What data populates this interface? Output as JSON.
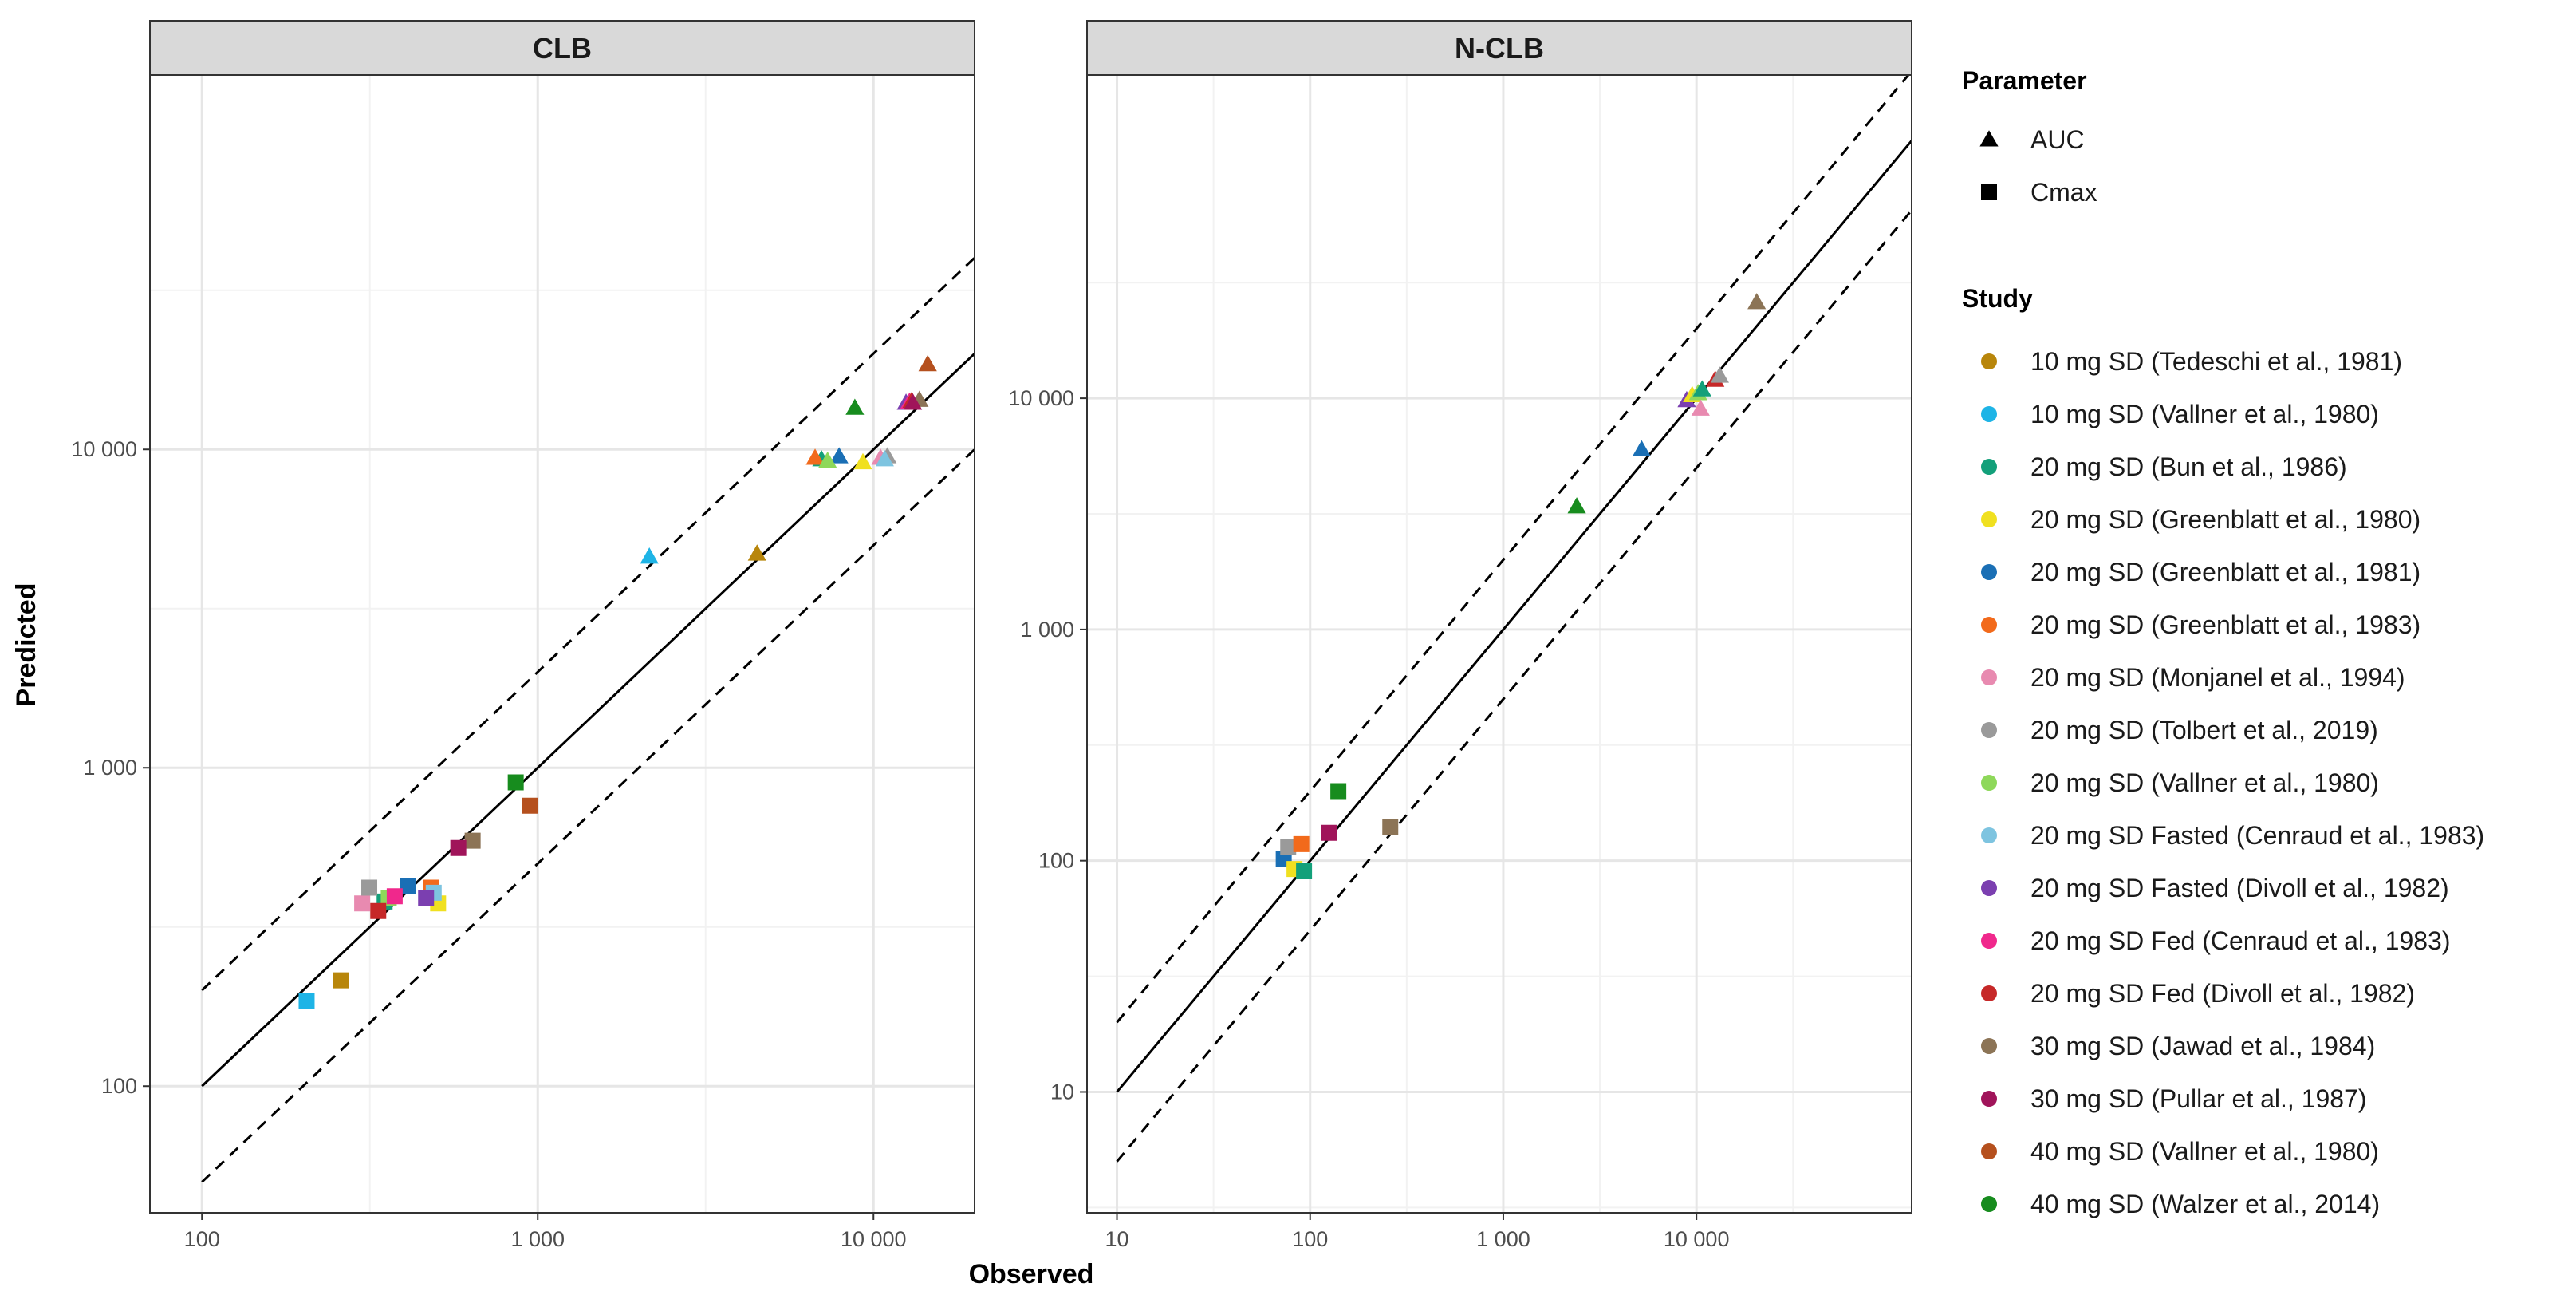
{
  "chart_data": [
    {
      "type": "scatter",
      "panel": "CLB",
      "scale": "log10",
      "xlabel": "Observed",
      "ylabel": "Predicted",
      "xlim": [
        70,
        20000
      ],
      "ylim": [
        40,
        150000
      ],
      "x_ticks": [
        {
          "value": 100,
          "label": "100"
        },
        {
          "value": 1000,
          "label": "1 000"
        },
        {
          "value": 10000,
          "label": "10 000"
        }
      ],
      "y_ticks": [
        {
          "value": 100,
          "label": "100"
        },
        {
          "value": 1000,
          "label": "1 000"
        },
        {
          "value": 10000,
          "label": "10 000"
        }
      ],
      "reference_lines": [
        {
          "style": "solid",
          "factor": 1,
          "x_range": [
            100,
            2000000
          ]
        },
        {
          "style": "dashed",
          "factor": 2,
          "x_range": [
            100,
            2000000
          ]
        },
        {
          "style": "dashed",
          "factor": 0.5,
          "x_range": [
            100,
            2000000
          ]
        }
      ],
      "points": [
        {
          "study": 0,
          "param": "Cmax",
          "x": 260,
          "y": 215
        },
        {
          "study": 0,
          "param": "AUC",
          "x": 4500,
          "y": 4700
        },
        {
          "study": 1,
          "param": "Cmax",
          "x": 205,
          "y": 185
        },
        {
          "study": 1,
          "param": "AUC",
          "x": 2150,
          "y": 4600
        },
        {
          "study": 2,
          "param": "Cmax",
          "x": 350,
          "y": 380
        },
        {
          "study": 2,
          "param": "AUC",
          "x": 7000,
          "y": 9300
        },
        {
          "study": 3,
          "param": "Cmax",
          "x": 505,
          "y": 375
        },
        {
          "study": 3,
          "param": "AUC",
          "x": 9300,
          "y": 9100
        },
        {
          "study": 4,
          "param": "Cmax",
          "x": 410,
          "y": 425
        },
        {
          "study": 4,
          "param": "AUC",
          "x": 7900,
          "y": 9500
        },
        {
          "study": 5,
          "param": "Cmax",
          "x": 480,
          "y": 420
        },
        {
          "study": 5,
          "param": "AUC",
          "x": 6700,
          "y": 9400
        },
        {
          "study": 6,
          "param": "Cmax",
          "x": 300,
          "y": 375
        },
        {
          "study": 6,
          "param": "AUC",
          "x": 10500,
          "y": 9400
        },
        {
          "study": 7,
          "param": "Cmax",
          "x": 315,
          "y": 420
        },
        {
          "study": 7,
          "param": "AUC",
          "x": 11000,
          "y": 9500
        },
        {
          "study": 8,
          "param": "Cmax",
          "x": 360,
          "y": 390
        },
        {
          "study": 8,
          "param": "AUC",
          "x": 7300,
          "y": 9200
        },
        {
          "study": 9,
          "param": "Cmax",
          "x": 490,
          "y": 405
        },
        {
          "study": 9,
          "param": "AUC",
          "x": 10800,
          "y": 9300
        },
        {
          "study": 10,
          "param": "Cmax",
          "x": 465,
          "y": 390
        },
        {
          "study": 10,
          "param": "AUC",
          "x": 12500,
          "y": 14000
        },
        {
          "study": 11,
          "param": "Cmax",
          "x": 375,
          "y": 395
        },
        {
          "study": 11,
          "param": "AUC",
          "x": 12800,
          "y": 14100
        },
        {
          "study": 12,
          "param": "Cmax",
          "x": 335,
          "y": 355
        },
        {
          "study": 12,
          "param": "AUC",
          "x": 13000,
          "y": 14200
        },
        {
          "study": 13,
          "param": "Cmax",
          "x": 640,
          "y": 590
        },
        {
          "study": 13,
          "param": "AUC",
          "x": 13700,
          "y": 14300
        },
        {
          "study": 14,
          "param": "Cmax",
          "x": 580,
          "y": 560
        },
        {
          "study": 14,
          "param": "AUC",
          "x": 13100,
          "y": 14000
        },
        {
          "study": 15,
          "param": "Cmax",
          "x": 950,
          "y": 760
        },
        {
          "study": 15,
          "param": "AUC",
          "x": 14500,
          "y": 18500
        },
        {
          "study": 16,
          "param": "Cmax",
          "x": 860,
          "y": 900
        },
        {
          "study": 16,
          "param": "AUC",
          "x": 8800,
          "y": 13500
        }
      ]
    },
    {
      "type": "scatter",
      "panel": "N-CLB",
      "scale": "log10",
      "xlabel": "Observed",
      "ylabel": "Predicted",
      "xlim": [
        7,
        130000
      ],
      "ylim": [
        3,
        250000
      ],
      "x_ticks": [
        {
          "value": 10,
          "label": "10"
        },
        {
          "value": 100,
          "label": "100"
        },
        {
          "value": 1000,
          "label": "1 000"
        },
        {
          "value": 10000,
          "label": "10 000"
        }
      ],
      "y_ticks": [
        {
          "value": 10,
          "label": "10"
        },
        {
          "value": 100,
          "label": "100"
        },
        {
          "value": 1000,
          "label": "1 000"
        },
        {
          "value": 10000,
          "label": "10 000"
        }
      ],
      "reference_lines": [
        {
          "style": "solid",
          "factor": 1,
          "x_range": [
            10,
            2000000
          ]
        },
        {
          "style": "dashed",
          "factor": 2,
          "x_range": [
            10,
            2000000
          ]
        },
        {
          "style": "dashed",
          "factor": 0.5,
          "x_range": [
            10,
            2000000
          ]
        }
      ],
      "points": [
        {
          "study": 4,
          "param": "Cmax",
          "x": 73,
          "y": 102
        },
        {
          "study": 7,
          "param": "Cmax",
          "x": 77,
          "y": 115
        },
        {
          "study": 5,
          "param": "Cmax",
          "x": 90,
          "y": 118
        },
        {
          "study": 3,
          "param": "Cmax",
          "x": 83,
          "y": 92
        },
        {
          "study": 2,
          "param": "Cmax",
          "x": 93,
          "y": 90
        },
        {
          "study": 14,
          "param": "Cmax",
          "x": 125,
          "y": 132
        },
        {
          "study": 16,
          "param": "Cmax",
          "x": 140,
          "y": 200
        },
        {
          "study": 13,
          "param": "Cmax",
          "x": 260,
          "y": 140
        },
        {
          "study": 16,
          "param": "AUC",
          "x": 2400,
          "y": 3400
        },
        {
          "study": 4,
          "param": "AUC",
          "x": 5200,
          "y": 6000
        },
        {
          "study": 10,
          "param": "AUC",
          "x": 8900,
          "y": 9800
        },
        {
          "study": 3,
          "param": "AUC",
          "x": 9500,
          "y": 10300
        },
        {
          "study": 8,
          "param": "AUC",
          "x": 10200,
          "y": 10500
        },
        {
          "study": 2,
          "param": "AUC",
          "x": 10700,
          "y": 10900
        },
        {
          "study": 6,
          "param": "AUC",
          "x": 10500,
          "y": 9000
        },
        {
          "study": 12,
          "param": "AUC",
          "x": 12500,
          "y": 12000
        },
        {
          "study": 7,
          "param": "AUC",
          "x": 13200,
          "y": 12500
        },
        {
          "study": 13,
          "param": "AUC",
          "x": 20500,
          "y": 26000
        }
      ]
    }
  ],
  "legend": {
    "parameter_title": "Parameter",
    "parameters": [
      {
        "name": "AUC",
        "shape": "triangle"
      },
      {
        "name": "Cmax",
        "shape": "square"
      }
    ],
    "study_title": "Study",
    "studies": [
      {
        "name": "10 mg SD (Tedeschi et al., 1981)",
        "color": "#B8860B"
      },
      {
        "name": "10 mg SD (Vallner et al., 1980)",
        "color": "#1EB4E6"
      },
      {
        "name": "20 mg SD (Bun et al., 1986)",
        "color": "#13A07A"
      },
      {
        "name": "20 mg SD (Greenblatt et al., 1980)",
        "color": "#F0E020"
      },
      {
        "name": "20 mg SD (Greenblatt et al., 1981)",
        "color": "#1A6FB5"
      },
      {
        "name": "20 mg SD (Greenblatt et al., 1983)",
        "color": "#F26A1B"
      },
      {
        "name": "20 mg SD (Monjanel et al., 1994)",
        "color": "#E88AB0"
      },
      {
        "name": "20 mg SD (Tolbert et al., 2019)",
        "color": "#9A9A9A"
      },
      {
        "name": "20 mg SD (Vallner et al., 1980)",
        "color": "#8ED85A"
      },
      {
        "name": "20 mg SD Fasted (Cenraud et al., 1983)",
        "color": "#7EC4E0"
      },
      {
        "name": "20 mg SD Fasted (Divoll et al., 1982)",
        "color": "#7B3FB0"
      },
      {
        "name": "20 mg SD Fed (Cenraud et al., 1983)",
        "color": "#F0288C"
      },
      {
        "name": "20 mg SD Fed (Divoll et al., 1982)",
        "color": "#C62828"
      },
      {
        "name": "30 mg SD (Jawad et al., 1984)",
        "color": "#8C7456"
      },
      {
        "name": "30 mg SD (Pullar et al., 1987)",
        "color": "#A0145A"
      },
      {
        "name": "40 mg SD (Vallner et al., 1980)",
        "color": "#B5501E"
      },
      {
        "name": "40 mg SD (Walzer et al., 2014)",
        "color": "#178C1E"
      }
    ]
  }
}
